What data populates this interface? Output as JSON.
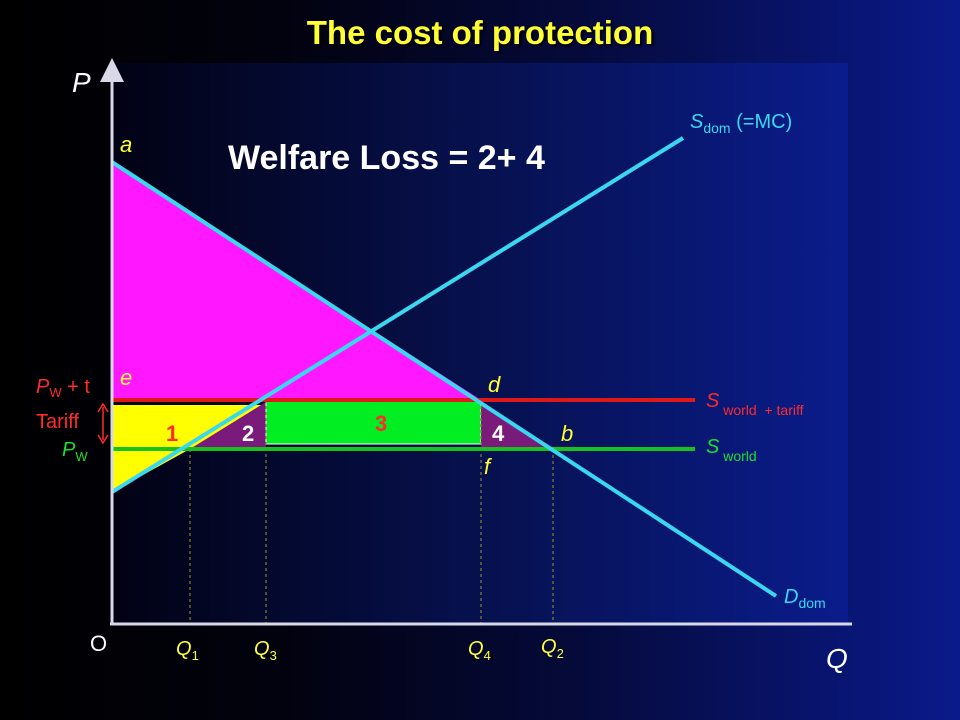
{
  "title": "The cost of protection",
  "colors": {
    "axis": "#d8d8e8",
    "supply_dom": "#3ad8f0",
    "demand_dom": "#3ad8f0",
    "s_world": "#17c21f",
    "s_world_tariff": "#e01818",
    "region_magenta": "#ff18ff",
    "region_yellow": "#ffff00",
    "region_purple": "#7a1a7a",
    "region_green": "#00ee22",
    "label_yellow": "#ffff33",
    "label_red": "#ff2a2a",
    "label_green": "#18e02a",
    "label_cyan": "#3ad8f0",
    "label_white": "#ffffff"
  },
  "welfare_loss": "Welfare Loss = 2+ 4",
  "axes": {
    "y": "P",
    "x": "Q",
    "origin": "O"
  },
  "points": {
    "a": "a",
    "e": "e",
    "d": "d",
    "b": "b",
    "f": "f"
  },
  "areas": {
    "one": "1",
    "two": "2",
    "three": "3",
    "four": "4"
  },
  "curves": {
    "s_dom": {
      "main": "S",
      "sub": "dom",
      "suffix": " (=MC)"
    },
    "d_dom": {
      "main": "D",
      "sub": "dom"
    },
    "s_world_tariff": {
      "main": "S",
      "sub": " world  + tariff"
    },
    "s_world": {
      "main": "S",
      "sub": " world"
    }
  },
  "price_labels": {
    "pw_t": {
      "main": "P",
      "sub": "W",
      "suffix": " + t"
    },
    "tariff": "Tariff",
    "pw": {
      "main": "P",
      "sub": "W"
    }
  },
  "quantities": {
    "q1": {
      "main": "Q",
      "sub": "1"
    },
    "q3": {
      "main": "Q",
      "sub": "3"
    },
    "q4": {
      "main": "Q",
      "sub": "4"
    },
    "q2": {
      "main": "Q",
      "sub": "2"
    }
  }
}
